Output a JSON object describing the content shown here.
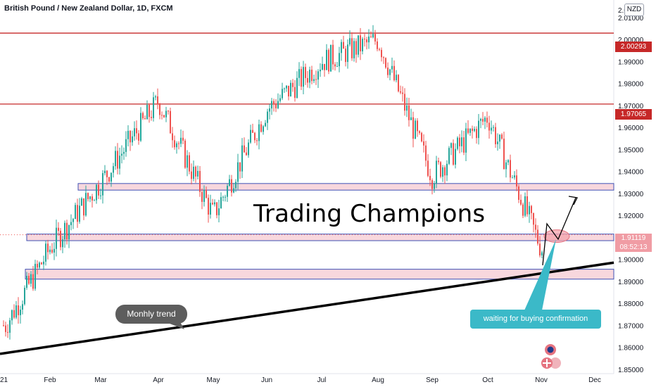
{
  "header": {
    "symbol_title": "British Pound / New Zealand Dollar, 1D, FXCM",
    "currency_badge": "NZD"
  },
  "annotations": {
    "brand_text": "Trading Champions",
    "trend_bubble": "Monhly trend",
    "callout": "waiting for buying confirmation"
  },
  "price_labels": {
    "resistance_upper": "2.00293",
    "resistance_mid": "1.97065",
    "current_price": "1.91119",
    "countdown": "08:52:13"
  },
  "colors": {
    "up_candle": "#26a69a",
    "down_candle": "#ef5350",
    "resistance_line": "#c62828",
    "zone_fill": "#f8d7dd",
    "zone_border": "#3f51b5",
    "trendline": "#000000",
    "callout": "#3bb9c8",
    "bubble": "#5d5d5d",
    "current_price_box": "#f09ca4"
  },
  "chart_data": {
    "type": "candlestick",
    "title": "British Pound / New Zealand Dollar, 1D, FXCM",
    "y_axis": {
      "range": [
        1.848,
        2.018
      ],
      "tick_labels": [
        "2.01000",
        "2.00000",
        "1.99000",
        "1.98000",
        "1.97000",
        "1.96000",
        "1.95000",
        "1.94000",
        "1.93000",
        "1.92000",
        "1.91000",
        "1.90000",
        "1.89000",
        "1.88000",
        "1.87000",
        "1.86000",
        "1.85000"
      ],
      "top_partial_label": "2.0"
    },
    "x_axis": {
      "tick_labels": [
        "21",
        "Feb",
        "Mar",
        "Apr",
        "May",
        "Jun",
        "Jul",
        "Aug",
        "Sep",
        "Oct",
        "Nov",
        "Dec"
      ]
    },
    "horizontal_levels": [
      2.00293,
      1.97065
    ],
    "zones": [
      {
        "from": 1.9315,
        "to": 1.9345
      },
      {
        "from": 1.9085,
        "to": 1.9115
      },
      {
        "from": 1.891,
        "to": 1.8955
      }
    ],
    "trendline": {
      "start": {
        "x": "21",
        "y": 1.857
      },
      "end": {
        "x": "Dec",
        "y": 1.8985
      }
    },
    "current_price": 1.91119,
    "trend_path": [
      {
        "x": "21",
        "y": 1.87
      },
      {
        "x": "Feb",
        "y": 1.905
      },
      {
        "x": "Mar",
        "y": 1.935
      },
      {
        "x": "Apr",
        "y": 1.972
      },
      {
        "x": "May",
        "y": 1.92
      },
      {
        "x": "Jun",
        "y": 1.968
      },
      {
        "x": "Jul",
        "y": 1.99
      },
      {
        "x": "Aug",
        "y": 2.0
      },
      {
        "x": "Sep",
        "y": 1.938
      },
      {
        "x": "Oct",
        "y": 1.965
      },
      {
        "x": "Nov",
        "y": 1.905
      }
    ]
  }
}
